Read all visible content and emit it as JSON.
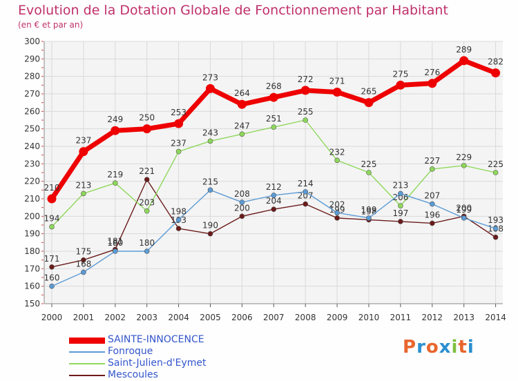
{
  "title": "Evolution de la Dotation Globale de Fonctionnement par Habitant",
  "subtitle": "(en € et par an)",
  "logo": {
    "text": "Proxiti",
    "letters": [
      "P",
      "r",
      "o",
      "x",
      "i",
      "t",
      "i"
    ],
    "colors": [
      "#e8662e",
      "#2a8fd0",
      "#e8662e",
      "#2a8fd0",
      "#7fbf3f",
      "#e8662e",
      "#2a8fd0"
    ]
  },
  "chart_data": {
    "type": "line",
    "x": [
      "2000",
      "2001",
      "2002",
      "2003",
      "2004",
      "2005",
      "2006",
      "2007",
      "2008",
      "2009",
      "2010",
      "2011",
      "2012",
      "2013",
      "2014"
    ],
    "ylim": [
      150,
      300
    ],
    "yticks": [
      150,
      160,
      170,
      180,
      190,
      200,
      210,
      220,
      230,
      240,
      250,
      260,
      270,
      280,
      290,
      300
    ],
    "grid": true,
    "legend_position": "bottom-left",
    "series": [
      {
        "name": "SAINTE-INNOCENCE",
        "color": "#ee0000",
        "values": [
          210,
          237,
          249,
          250,
          253,
          273,
          264,
          268,
          272,
          271,
          265,
          275,
          276,
          289,
          282
        ]
      },
      {
        "name": "Fonroque",
        "color": "#5b9bd5",
        "values": [
          160,
          168,
          180,
          180,
          198,
          215,
          208,
          212,
          214,
          202,
          199,
          213,
          207,
          199,
          193
        ]
      },
      {
        "name": "Saint-Julien-d'Eymet",
        "color": "#8ed85a",
        "values": [
          194,
          213,
          219,
          203,
          237,
          243,
          247,
          251,
          255,
          232,
          225,
          206,
          227,
          229,
          225
        ]
      },
      {
        "name": "Mescoules",
        "color": "#6b1a1a",
        "values": [
          171,
          175,
          181,
          221,
          193,
          190,
          200,
          204,
          207,
          199,
          198,
          197,
          196,
          200,
          188
        ]
      }
    ]
  }
}
